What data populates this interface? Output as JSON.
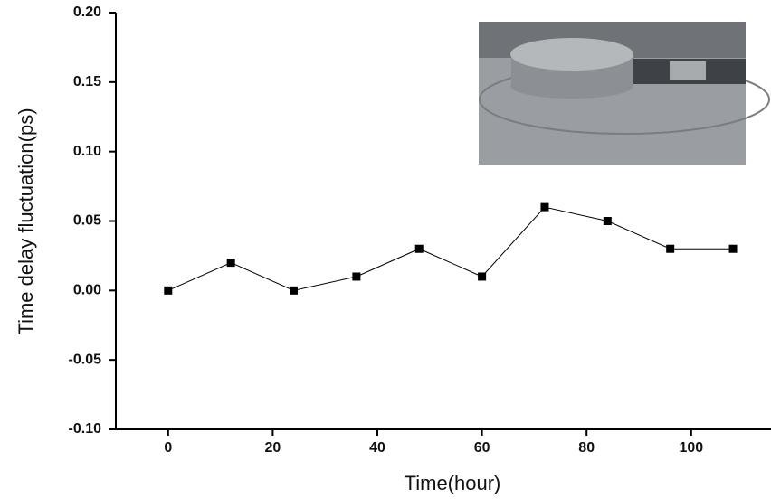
{
  "chart_data": {
    "type": "line",
    "xlabel": "Time(hour)",
    "ylabel": "Time delay fluctuation(ps)",
    "x": [
      0,
      12,
      24,
      36,
      48,
      60,
      72,
      84,
      96,
      108
    ],
    "values": [
      0,
      0.02,
      0,
      0.01,
      0.03,
      0.01,
      0.06,
      0.05,
      0.03,
      0.03
    ],
    "color": "#000000",
    "marker": "square",
    "xlim": [
      -10,
      115
    ],
    "ylim": [
      -0.1,
      0.2
    ],
    "xticks": [
      0,
      20,
      40,
      60,
      80,
      100
    ],
    "yticks": [
      {
        "value": -0.1,
        "label": "-0.10"
      },
      -0.05,
      {
        "value": 0,
        "label": "0.00"
      },
      0.05,
      {
        "value": 0.1,
        "label": "0.10"
      },
      0.15,
      {
        "value": 0.2,
        "label": "0.20"
      }
    ],
    "grid": false
  }
}
